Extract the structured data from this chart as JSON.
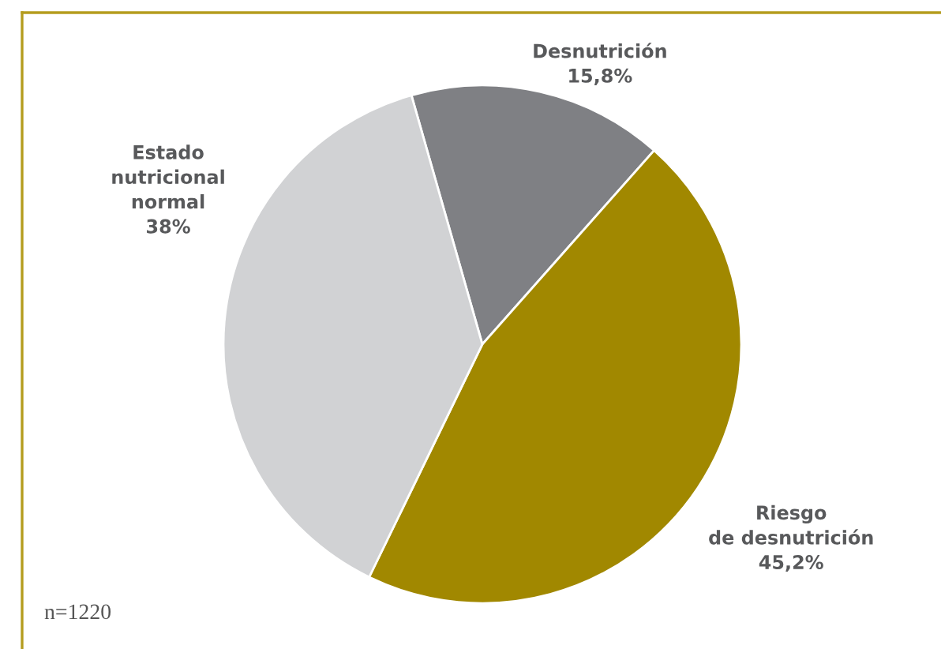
{
  "chart_data": {
    "type": "pie",
    "categories": [
      "Desnutrición",
      "Riesgo\nde desnutrición",
      "Estado\nnutricional\nnormal"
    ],
    "values": [
      15.8,
      45.2,
      38
    ],
    "colors": [
      "#7f8084",
      "#a18800",
      "#d1d2d4"
    ],
    "value_labels": [
      "15,8%",
      "45,2%",
      "38%"
    ],
    "annotations": [
      "n=1220"
    ]
  }
}
